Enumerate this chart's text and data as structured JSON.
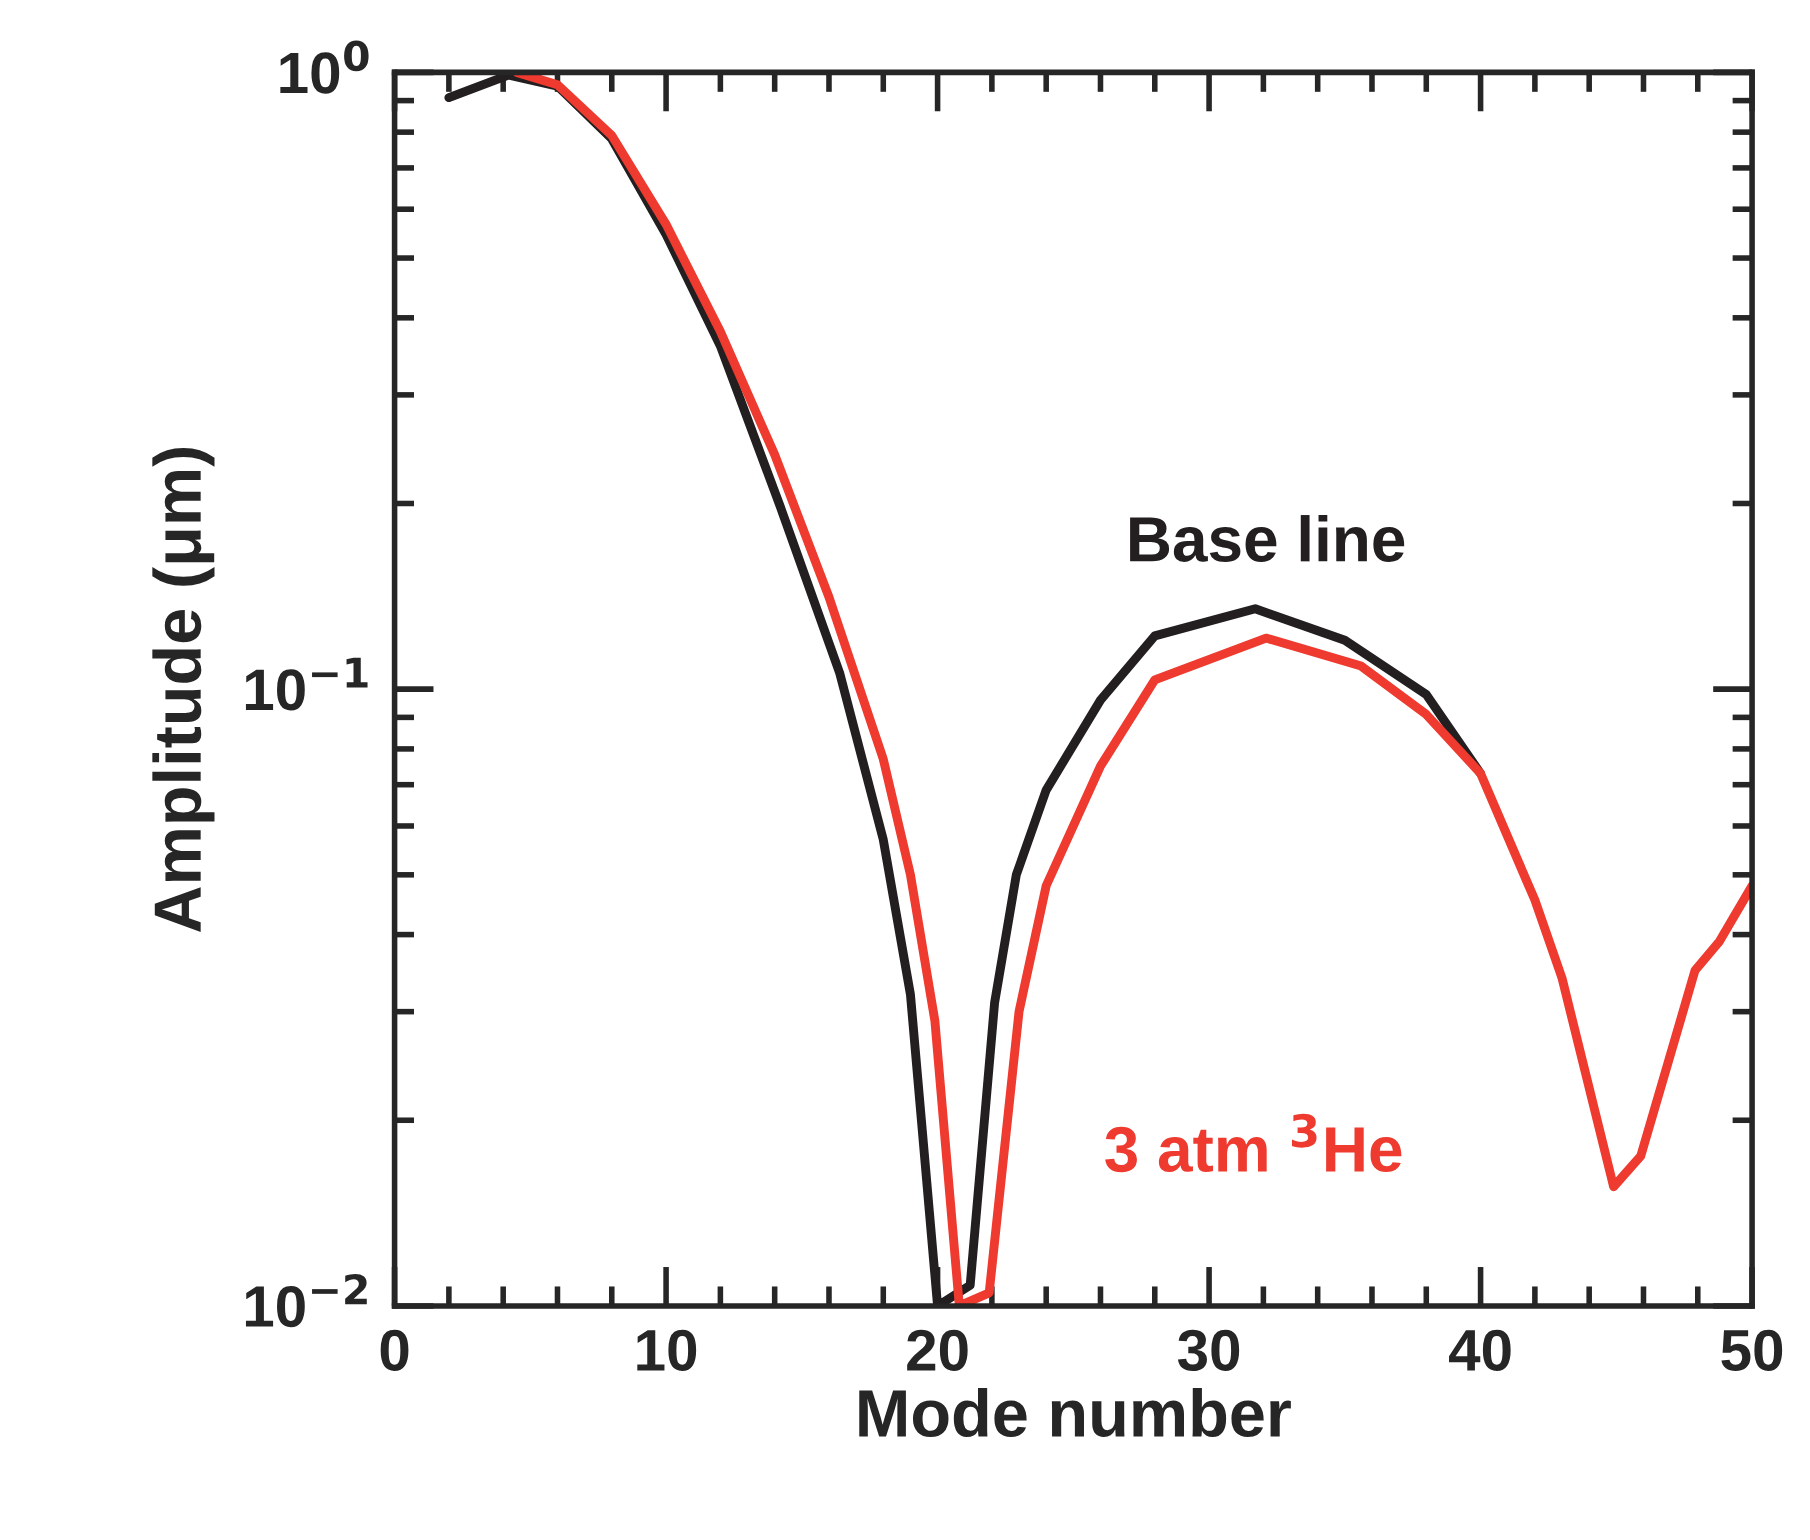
{
  "chart_data": {
    "type": "line",
    "xlabel": "Mode number",
    "ylabel": "Amplitude (μm)",
    "log": "y",
    "xlim": [
      0,
      50
    ],
    "ylim": [
      0.01,
      1
    ],
    "xticks": [
      0,
      10,
      20,
      30,
      40,
      50
    ],
    "yticks": [
      {
        "value": 0.01,
        "label": "10$^{−2}$"
      },
      {
        "value": 0.1,
        "label": "10$^{−1}$"
      },
      {
        "value": 1,
        "label": "10$^{0}$"
      }
    ],
    "grid": false,
    "legend": false,
    "marker": "none",
    "line_style": "solid",
    "series": [
      {
        "color": "#231f20",
        "x": [
          2,
          4.2,
          6,
          8,
          10,
          12,
          14.2,
          16.4,
          18,
          19,
          20,
          21.2,
          22.1,
          22.9,
          24,
          26,
          28,
          31.7,
          35,
          38,
          40
        ],
        "values": [
          0.91,
          0.99,
          0.95,
          0.78,
          0.546,
          0.36,
          0.198,
          0.106,
          0.057,
          0.032,
          0.01,
          0.0108,
          0.031,
          0.05,
          0.0686,
          0.096,
          0.122,
          0.135,
          0.12,
          0.098,
          0.073
        ]
      },
      {
        "color": "#ee3a2f",
        "x": [
          4.5,
          6,
          8,
          10,
          12,
          14,
          16,
          18,
          19,
          19.9,
          20.8,
          21.9,
          23,
          24,
          26,
          28,
          32.1,
          35.6,
          38,
          40,
          42,
          43,
          44.9,
          45.9,
          47.9,
          48.8,
          50
        ],
        "values": [
          1.0,
          0.955,
          0.79,
          0.567,
          0.38,
          0.24,
          0.141,
          0.077,
          0.05,
          0.029,
          0.01,
          0.0105,
          0.03,
          0.048,
          0.075,
          0.1035,
          0.121,
          0.109,
          0.091,
          0.073,
          0.0455,
          0.034,
          0.0156,
          0.0175,
          0.035,
          0.039,
          0.048
        ]
      }
    ],
    "annotations": [
      "Base line",
      "3 atm $^{3}$He"
    ]
  }
}
